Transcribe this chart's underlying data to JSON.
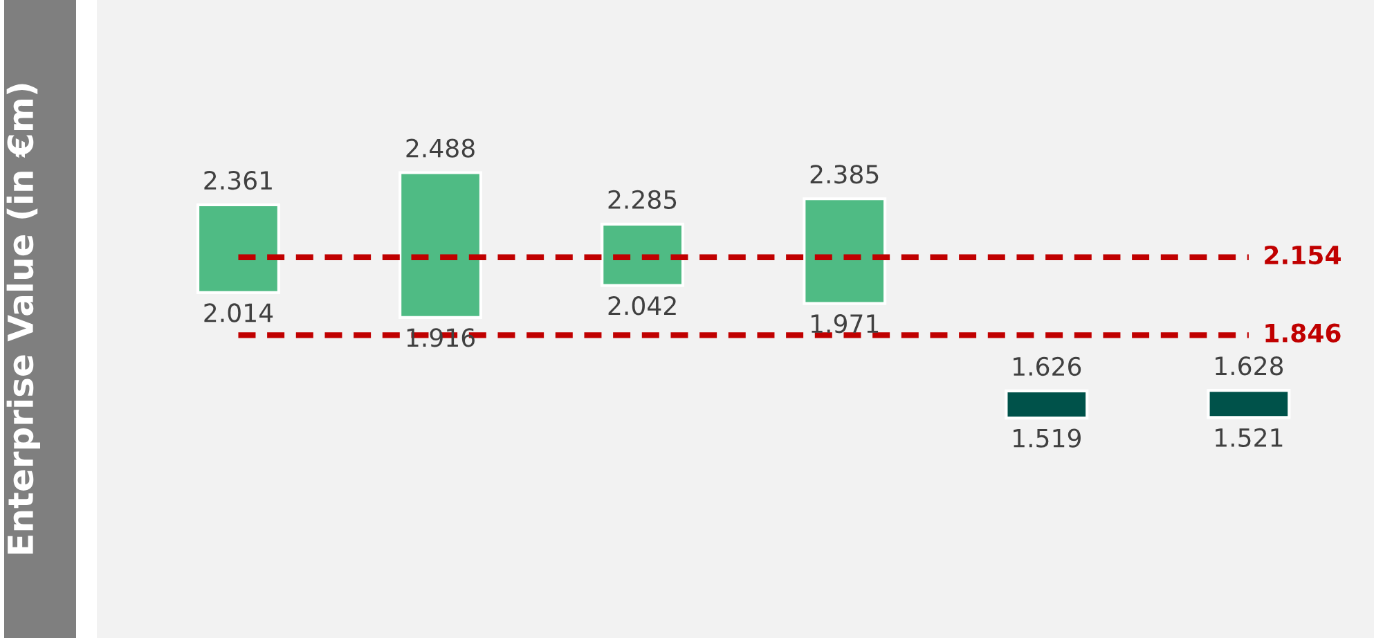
{
  "chart_data": {
    "type": "bar",
    "ylabel": "Enterprise Value (in €m)",
    "categories": [
      null,
      null,
      null,
      null,
      null,
      null
    ],
    "base": [
      2.014,
      1.916,
      2.042,
      1.971,
      1.519,
      1.521
    ],
    "values": [
      0.347,
      0.572,
      0.243,
      0.414,
      0.107,
      0.107
    ],
    "colors": [
      "#4fbb84",
      "#4fbb84",
      "#4fbb84",
      "#4fbb84",
      "#00524a",
      "#00524a"
    ],
    "value_labels": [
      "2.361",
      "2.488",
      "2.285",
      "2.385",
      "1.626",
      "1.628"
    ],
    "annotations": [
      "2.014",
      "1.916",
      "2.042",
      "1.971",
      "1.519",
      "1.521"
    ],
    "ylim": [
      0.65,
      3.17
    ],
    "ref_lines": [
      {
        "axis": "y",
        "value": 2.154,
        "label": "2.154",
        "color": "#c00000",
        "line_style": "dashed"
      },
      {
        "axis": "y",
        "value": 1.846,
        "label": "1.846",
        "color": "#c00000",
        "line_style": "dashed"
      }
    ],
    "legend": false
  }
}
